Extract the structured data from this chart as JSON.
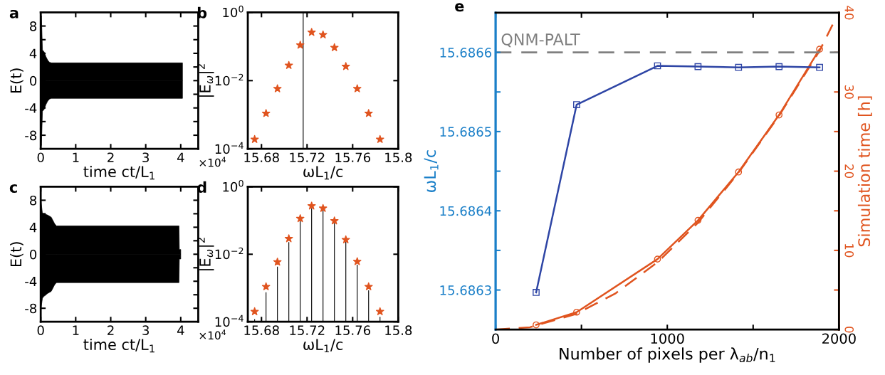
{
  "chart_data": [
    {
      "type": "area",
      "title": "a",
      "xlabel": "time ct/L$_{1}$",
      "ylabel": "E(t)",
      "annotations": [
        "×10$^{4}$"
      ],
      "xlim": [
        0,
        4.5
      ],
      "xticks": [
        0,
        1,
        2,
        3,
        4
      ],
      "ylim": [
        -10,
        10
      ],
      "yticks": [
        {
          "value": -8,
          "label": "-8"
        },
        {
          "value": -6,
          "label": null
        },
        {
          "value": -4,
          "label": "-4"
        },
        {
          "value": -2,
          "label": null
        },
        0,
        {
          "value": 2,
          "label": null
        },
        4,
        {
          "value": 6,
          "label": null
        },
        8
      ],
      "series": [
        {
          "color": "#000000",
          "x": [
            0,
            0.02,
            0.05,
            0.1,
            0.15,
            0.2,
            0.25,
            0.3,
            4.05
          ],
          "values": [
            9.5,
            9.5,
            4.5,
            4.2,
            3.5,
            3.0,
            2.7,
            2.6,
            2.6
          ]
        },
        {
          "color": "#000000",
          "x": [
            0,
            0.02,
            0.05,
            0.1,
            0.15,
            0.2,
            0.25,
            0.3,
            4.05
          ],
          "values": [
            -9.5,
            -9.5,
            -4.5,
            -4.2,
            -3.5,
            -3.0,
            -2.7,
            -2.6,
            -2.6
          ]
        }
      ]
    },
    {
      "type": "scatter",
      "title": "b",
      "xlabel": "ωL$_{1}$/c",
      "ylabel": "|E$_{ω}$|$^{2}$",
      "log": "y",
      "marker": "star",
      "xlim": [
        15.668,
        15.8
      ],
      "xticks": [
        15.68,
        15.72,
        15.76,
        15.8
      ],
      "ylim": [
        0.0001,
        1
      ],
      "yticks": [
        {
          "value": 0.0001,
          "label": "10$^{−4}$"
        },
        {
          "value": 0.01,
          "label": "10$^{−2}$"
        },
        {
          "value": 1,
          "label": "10$^{0}$"
        }
      ],
      "series": [
        {
          "type": "bar",
          "color": "#000000",
          "x": [
            15.7166
          ],
          "values": [
            1
          ]
        },
        {
          "color": "#e0541f",
          "x": [
            15.674,
            15.684,
            15.694,
            15.704,
            15.714,
            15.724,
            15.734,
            15.744,
            15.754,
            15.764,
            15.774,
            15.784
          ],
          "values": [
            0.00019,
            0.0011,
            0.0058,
            0.028,
            0.11,
            0.26,
            0.22,
            0.093,
            0.026,
            0.0058,
            0.0011,
            0.00019
          ]
        }
      ]
    },
    {
      "type": "area",
      "title": "c",
      "xlabel": "time ct/L$_{1}$",
      "ylabel": "E(t)",
      "annotations": [
        "×10$^{4}$"
      ],
      "xlim": [
        0,
        4.5
      ],
      "xticks": [
        0,
        1,
        2,
        3,
        4
      ],
      "ylim": [
        -10,
        10
      ],
      "yticks": [
        {
          "value": -8,
          "label": "-8"
        },
        {
          "value": -6,
          "label": null
        },
        {
          "value": -4,
          "label": "-4"
        },
        {
          "value": -2,
          "label": null
        },
        0,
        {
          "value": 2,
          "label": null
        },
        4,
        {
          "value": 6,
          "label": null
        },
        8
      ],
      "series": [
        {
          "color": "#000000",
          "x": [
            0,
            0.05,
            0.1,
            0.2,
            0.3,
            0.4,
            0.45,
            3.95,
            3.96,
            4.0
          ],
          "values": [
            8.2,
            6.0,
            6.0,
            5.8,
            5.5,
            4.5,
            4.2,
            4.2,
            0.7,
            0.7
          ]
        },
        {
          "color": "#000000",
          "x": [
            0,
            0.05,
            0.1,
            0.2,
            0.3,
            0.4,
            0.45,
            3.95,
            3.96,
            4.0
          ],
          "values": [
            -8.3,
            -6.5,
            -6.2,
            -5.8,
            -5.5,
            -4.5,
            -4.2,
            -4.2,
            -0.7,
            -0.7
          ]
        }
      ]
    },
    {
      "type": "scatter",
      "title": "d",
      "xlabel": "ωL$_{1}$/c",
      "ylabel": "|E$_{ω}$|$^{2}$",
      "log": "y",
      "marker": "star",
      "xlim": [
        15.668,
        15.8
      ],
      "xticks": [
        15.68,
        15.72,
        15.76,
        15.8
      ],
      "ylim": [
        0.0001,
        1
      ],
      "yticks": [
        {
          "value": 0.0001,
          "label": "10$^{−4}$"
        },
        {
          "value": 0.01,
          "label": "10$^{−2}$"
        },
        {
          "value": 1,
          "label": "10$^{0}$"
        }
      ],
      "series": [
        {
          "type": "bar",
          "color": "#000000",
          "x": [
            15.674,
            15.684,
            15.694,
            15.704,
            15.714,
            15.724,
            15.734,
            15.744,
            15.754,
            15.764,
            15.774,
            15.784
          ],
          "values": [
            0.00012,
            0.00075,
            0.0043,
            0.023,
            0.098,
            0.23,
            0.2,
            0.085,
            0.024,
            0.0049,
            0.00085,
            0.00014
          ]
        },
        {
          "color": "#e0541f",
          "x": [
            15.674,
            15.684,
            15.694,
            15.704,
            15.714,
            15.724,
            15.734,
            15.744,
            15.754,
            15.764,
            15.774,
            15.784
          ],
          "values": [
            0.0002,
            0.0011,
            0.0059,
            0.029,
            0.114,
            0.27,
            0.23,
            0.098,
            0.027,
            0.0061,
            0.0011,
            0.0002
          ]
        }
      ]
    },
    {
      "type": "line",
      "title": "e",
      "xlabel": "Number of pixels per λ$_{ab}$/n$_{1}$",
      "ylabel": "ωL$_{1}$/c",
      "y2label": "Simulation time [h]",
      "xlim": [
        0,
        2000
      ],
      "xticks": [
        0,
        {
          "value": 500,
          "label": null
        },
        1000,
        {
          "value": 1500,
          "label": null
        },
        2000
      ],
      "ylim": [
        15.68625,
        15.68665
      ],
      "yticks": [
        15.6863,
        {
          "value": 15.68635,
          "label": null
        },
        15.6864,
        {
          "value": 15.68645,
          "label": null
        },
        15.6865,
        {
          "value": 15.68655,
          "label": null
        },
        15.6866,
        {
          "value": 15.68665,
          "label": null
        }
      ],
      "y2lim": [
        0,
        40
      ],
      "y2ticks": [
        0,
        {
          "value": 5,
          "label": null
        },
        10,
        {
          "value": 15,
          "label": null
        },
        20,
        {
          "value": 25,
          "label": null
        },
        30,
        {
          "value": 35,
          "label": null
        },
        40
      ],
      "ref_lines": [
        {
          "axis": "y",
          "value": 15.6866,
          "label": "QNM-PALT",
          "color": "#808080",
          "line_style": "dashed"
        }
      ],
      "series": [
        {
          "color": "#2e45a5",
          "marker": "square",
          "x": [
            236,
            472,
            943,
            1179,
            1415,
            1651,
            1887
          ],
          "values": [
            15.686297,
            15.686534,
            15.686583,
            15.686582,
            15.686581,
            15.686582,
            15.686581
          ]
        },
        {
          "color": "#e0541f",
          "axis": "y2",
          "marker": "circle",
          "x": [
            236,
            472,
            943,
            1179,
            1415,
            1651,
            1887
          ],
          "values": [
            0.6,
            2.2,
            8.9,
            13.8,
            19.9,
            27.1,
            35.4
          ]
        },
        {
          "color": "#e0541f",
          "axis": "y2",
          "line_style": "dashed",
          "x": [
            0,
            200,
            472,
            700,
            943,
            1179,
            1415,
            1651,
            1887,
            1963
          ],
          "values": [
            0,
            0.3,
            2.0,
            4.6,
            8.5,
            13.5,
            19.8,
            27.0,
            35.2,
            38.5
          ]
        }
      ]
    }
  ]
}
